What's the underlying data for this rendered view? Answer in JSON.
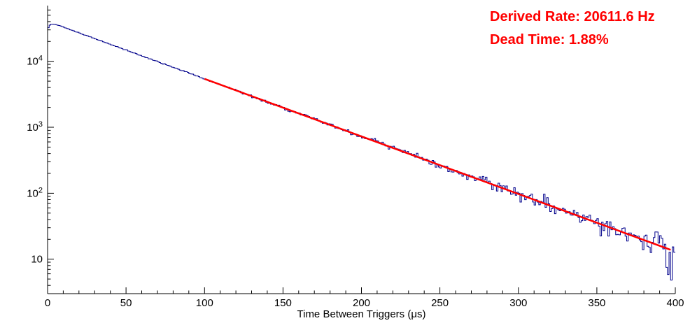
{
  "annotations": {
    "derived_rate": "Derived Rate: 20611.6 Hz",
    "dead_time": "Dead Time: 1.88%",
    "color": "#ff0000"
  },
  "chart_data": {
    "type": "histogram",
    "title": "",
    "xlabel": "Time Between Triggers (μs)",
    "ylabel": "",
    "x_range": [
      0,
      400
    ],
    "y_scale": "log",
    "y_range": [
      3,
      70000
    ],
    "x_ticks": [
      0,
      50,
      100,
      150,
      200,
      250,
      300,
      350,
      400
    ],
    "x_minor_step": 10,
    "y_ticks": [
      {
        "value": 10,
        "base": "10",
        "sup": ""
      },
      {
        "value": 100,
        "base": "10",
        "sup": "2"
      },
      {
        "value": 1000,
        "base": "10",
        "sup": "3"
      },
      {
        "value": 10000,
        "base": "10",
        "sup": "4"
      }
    ],
    "histogram": {
      "color": "#00008b",
      "bins": 400,
      "bin_width": 1,
      "model": "counts = amplitude * exp(-decay_per_us * x) * (1 - rise_amplitude * exp(-x / rise_tau)) + sqrt(N) Poisson noise",
      "amplitude": 40500,
      "decay_per_us": 0.0201,
      "rise_amplitude": 0.28,
      "rise_tau": 1.4,
      "noise_seed": 1337
    },
    "fit": {
      "color": "#ff0000",
      "x_start": 100,
      "x_end": 397,
      "amplitude": 40500,
      "decay_per_us": 0.0201
    },
    "sampled_points": [
      {
        "x": 2,
        "y": 40000
      },
      {
        "x": 50,
        "y": 15000
      },
      {
        "x": 100,
        "y": 5400
      },
      {
        "x": 150,
        "y": 2000
      },
      {
        "x": 200,
        "y": 720
      },
      {
        "x": 250,
        "y": 270
      },
      {
        "x": 300,
        "y": 100
      },
      {
        "x": 350,
        "y": 36
      },
      {
        "x": 400,
        "y": 13
      }
    ],
    "legend": "none",
    "grid": false
  }
}
